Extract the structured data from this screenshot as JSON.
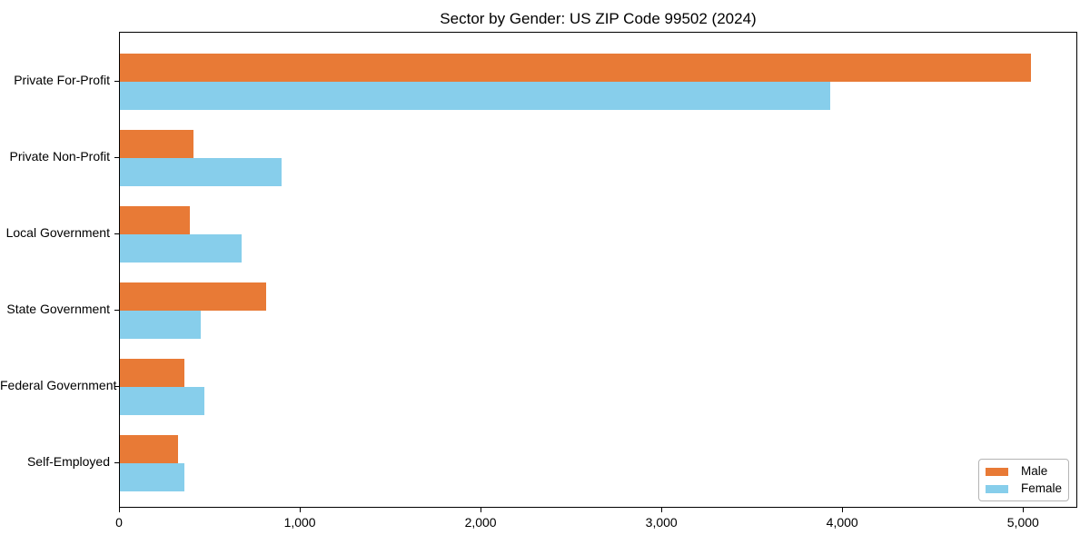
{
  "chart_data": {
    "type": "bar",
    "orientation": "horizontal",
    "title": "Sector by Gender: US ZIP Code 99502 (2024)",
    "categories": [
      "Private For-Profit",
      "Private Non-Profit",
      "Local Government",
      "State Government",
      "Federal Government",
      "Self-Employed"
    ],
    "series": [
      {
        "name": "Male",
        "color": "#e87a36",
        "values": [
          5040,
          407,
          386,
          807,
          355,
          323
        ]
      },
      {
        "name": "Female",
        "color": "#87ceeb",
        "values": [
          3926,
          892,
          673,
          447,
          468,
          356
        ]
      }
    ],
    "xlim": [
      0,
      5300
    ],
    "xticks": [
      {
        "value": 0,
        "label": "0"
      },
      {
        "value": 1000,
        "label": "1,000"
      },
      {
        "value": 2000,
        "label": "2,000"
      },
      {
        "value": 3000,
        "label": "3,000"
      },
      {
        "value": 4000,
        "label": "4,000"
      },
      {
        "value": 5000,
        "label": "5,000"
      }
    ],
    "xlabel": "",
    "ylabel": "",
    "grid": false,
    "legend_location": "lower right"
  }
}
